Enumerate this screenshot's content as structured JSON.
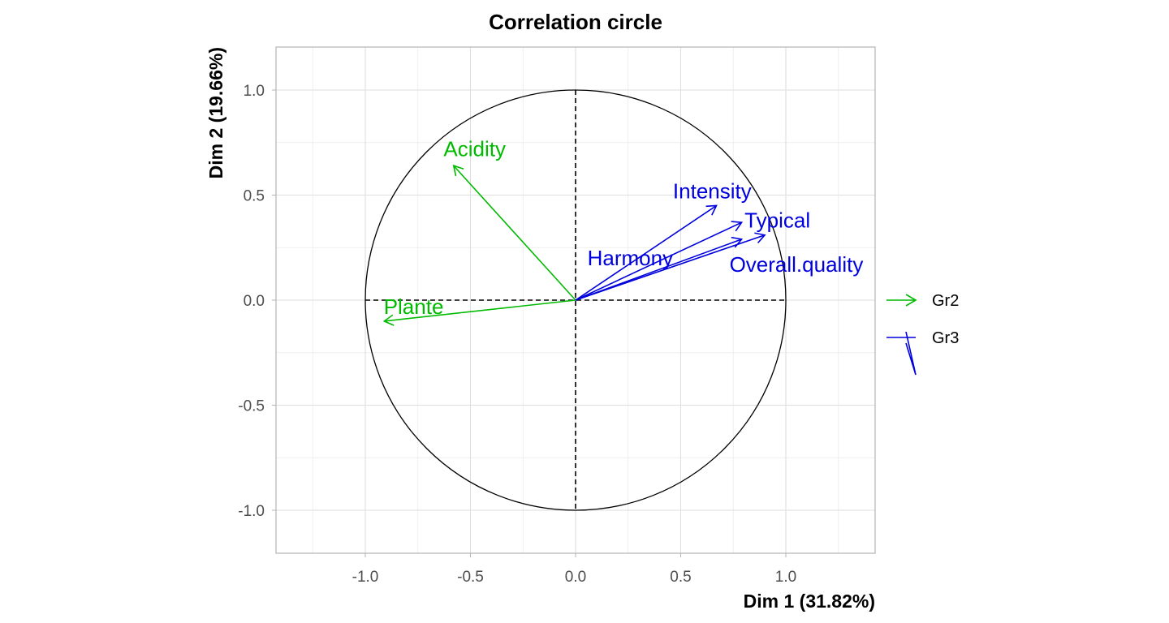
{
  "chart_data": {
    "type": "scatter",
    "title": "Correlation circle",
    "xlabel": "Dim 1 (31.82%)",
    "ylabel": "Dim 2 (19.66%)",
    "xlim": [
      -1.3,
      1.3
    ],
    "ylim": [
      -1.2,
      1.2
    ],
    "x_ticks": [
      -1.0,
      -0.5,
      0.0,
      0.5,
      1.0
    ],
    "x_tick_labels": [
      "-1.0",
      "-0.5",
      "0.0",
      "0.5",
      "1.0"
    ],
    "y_ticks": [
      -1.0,
      -0.5,
      0.0,
      0.5,
      1.0
    ],
    "y_tick_labels": [
      "-1.0",
      "-0.5",
      "0.0",
      "0.5",
      "1.0"
    ],
    "grid": true,
    "legend_position": "right",
    "legend": [
      {
        "group": "Gr2",
        "color": "#00BA00"
      },
      {
        "group": "Gr3",
        "color": "#0000DD"
      }
    ],
    "variables": [
      {
        "name": "Acidity",
        "group": "Gr2",
        "x": -0.58,
        "y": 0.64
      },
      {
        "name": "Plante",
        "group": "Gr2",
        "x": -0.91,
        "y": -0.1
      },
      {
        "name": "Intensity",
        "group": "Gr3",
        "x": 0.67,
        "y": 0.45
      },
      {
        "name": "Typical",
        "group": "Gr3",
        "x": 0.79,
        "y": 0.37
      },
      {
        "name": "Harmony",
        "group": "Gr3",
        "x": 0.79,
        "y": 0.29
      },
      {
        "name": "Overall.quality",
        "group": "Gr3",
        "x": 0.9,
        "y": 0.31
      }
    ]
  }
}
